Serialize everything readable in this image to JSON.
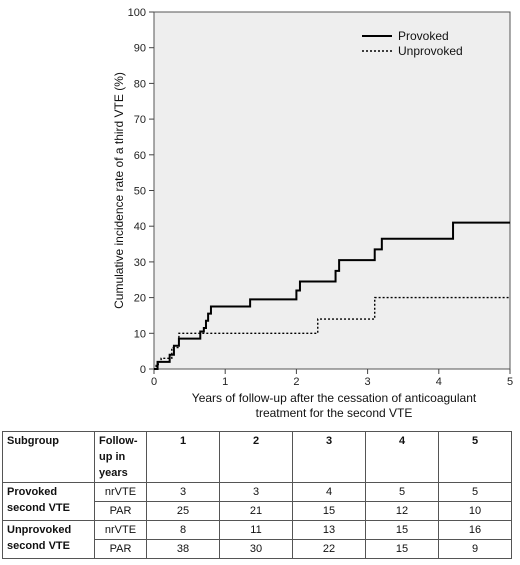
{
  "chart_data": {
    "type": "line",
    "xlabel": [
      "Years of follow-up after the cessation of anticoagulant",
      "treatment for the second VTE"
    ],
    "ylabel": "Cumulative incidence rate of a third VTE (%)",
    "xlim": [
      0,
      5
    ],
    "ylim": [
      0,
      100
    ],
    "xticks": [
      0,
      1,
      2,
      3,
      4,
      5
    ],
    "yticks": [
      0,
      10,
      20,
      30,
      40,
      50,
      60,
      70,
      80,
      90,
      100
    ],
    "legend_position": "top-right",
    "series": [
      {
        "name": "Provoked",
        "style": "solid",
        "color": "#000000",
        "x": [
          0,
          0.05,
          0.12,
          0.22,
          0.28,
          0.35,
          0.65,
          0.7,
          0.73,
          0.76,
          0.8,
          1.35,
          2.0,
          2.05,
          2.55,
          2.6,
          3.1,
          3.15,
          3.2,
          4.2,
          5.0
        ],
        "y": [
          0,
          2,
          2,
          4,
          6.5,
          8.5,
          10.5,
          11.5,
          13.5,
          15.5,
          17.5,
          19.5,
          22,
          24.5,
          27.5,
          30.5,
          33.5,
          33.5,
          36.5,
          41,
          41
        ]
      },
      {
        "name": "Unprovoked",
        "style": "dotted",
        "color": "#000000",
        "x": [
          0,
          0.03,
          0.06,
          0.1,
          0.15,
          0.25,
          0.35,
          2.3,
          3.1,
          5.0
        ],
        "y": [
          0,
          1,
          2,
          3,
          3,
          6,
          10,
          14,
          20,
          20
        ]
      }
    ]
  },
  "table": {
    "header": {
      "subgroup": "Subgroup",
      "followup": [
        "Follow-",
        "up in",
        "years"
      ],
      "years": [
        "1",
        "2",
        "3",
        "4",
        "5"
      ]
    },
    "groups": [
      {
        "label": [
          "Provoked",
          "second VTE"
        ],
        "rows": [
          {
            "metric": "nrVTE",
            "values": [
              "3",
              "3",
              "4",
              "5",
              "5"
            ]
          },
          {
            "metric": "PAR",
            "values": [
              "25",
              "21",
              "15",
              "12",
              "10"
            ]
          }
        ]
      },
      {
        "label": [
          "Unprovoked",
          "second VTE"
        ],
        "rows": [
          {
            "metric": "nrVTE",
            "values": [
              "8",
              "11",
              "13",
              "15",
              "16"
            ]
          },
          {
            "metric": "PAR",
            "values": [
              "38",
              "30",
              "22",
              "15",
              "9"
            ]
          }
        ]
      }
    ]
  }
}
